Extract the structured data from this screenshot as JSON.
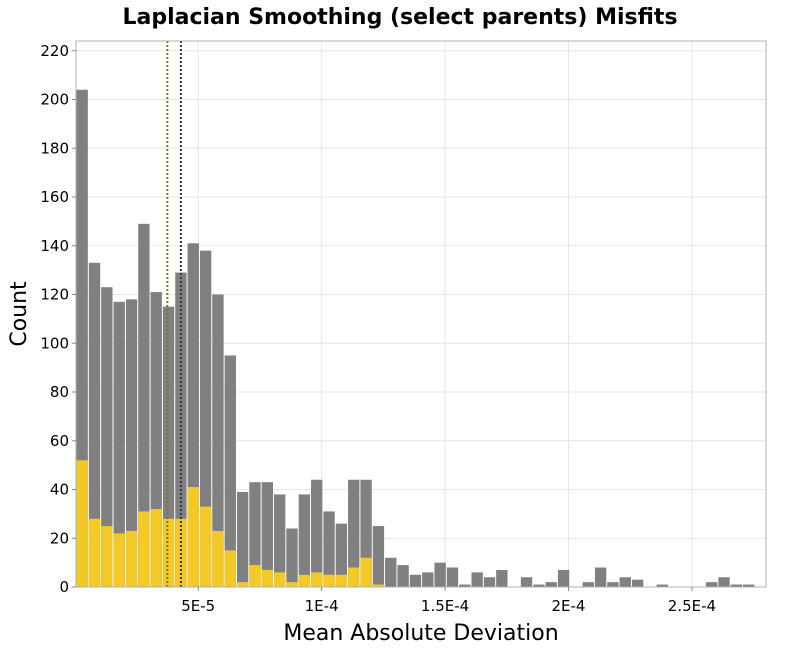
{
  "chart_data": {
    "type": "bar",
    "title": "Laplacian Smoothing (select parents) Misfits",
    "xlabel": "Mean Absolute Deviation",
    "ylabel": "Count",
    "xlim": [
      5e-07,
      0.00028
    ],
    "ylim": [
      0,
      224
    ],
    "bin_width": 5e-06,
    "x_ticks": [
      {
        "value": 5e-05,
        "label": "5E-5"
      },
      {
        "value": 0.0001,
        "label": "1E-4"
      },
      {
        "value": 0.00015,
        "label": "1.5E-4"
      },
      {
        "value": 0.0002,
        "label": "2E-4"
      },
      {
        "value": 0.00025,
        "label": "2.5E-4"
      }
    ],
    "y_ticks": [
      0,
      20,
      40,
      60,
      80,
      100,
      120,
      140,
      160,
      180,
      200,
      220
    ],
    "grid": true,
    "bin_starts": [
      5e-07,
      5.5e-06,
      1.05e-05,
      1.55e-05,
      2.05e-05,
      2.55e-05,
      3.05e-05,
      3.55e-05,
      4.05e-05,
      4.55e-05,
      5.05e-05,
      5.55e-05,
      6.05e-05,
      6.55e-05,
      7.05e-05,
      7.55e-05,
      8.05e-05,
      8.55e-05,
      9.05e-05,
      9.55e-05,
      0.0001005,
      0.0001055,
      0.0001105,
      0.0001155,
      0.0001205,
      0.0001255,
      0.0001305,
      0.0001355,
      0.0001405,
      0.0001455,
      0.0001505,
      0.0001555,
      0.0001605,
      0.0001655,
      0.0001705,
      0.0001755,
      0.0001805,
      0.0001855,
      0.0001905,
      0.0001955,
      0.0002005,
      0.0002055,
      0.0002105,
      0.0002155,
      0.0002205,
      0.0002255,
      0.0002305,
      0.0002355,
      0.0002405,
      0.0002455,
      0.0002505,
      0.0002555,
      0.0002605,
      0.0002655,
      0.0002705,
      0.0002755
    ],
    "series": [
      {
        "color": "#808080",
        "values": [
          204,
          133,
          123,
          117,
          118,
          149,
          121,
          115,
          129,
          141,
          138,
          120,
          95,
          39,
          43,
          43,
          38,
          24,
          38,
          44,
          31,
          26,
          44,
          44,
          25,
          12,
          9,
          5,
          6,
          10,
          8,
          1,
          6,
          4,
          7,
          0,
          4,
          1,
          2,
          7,
          0,
          2,
          8,
          2,
          4,
          3,
          0,
          1,
          0,
          0,
          0,
          2,
          4,
          1,
          1,
          0
        ]
      },
      {
        "color": "#f2c927",
        "values": [
          52,
          28,
          25,
          22,
          23,
          31,
          32,
          28,
          28,
          41,
          33,
          23,
          15,
          2,
          9,
          7,
          6,
          2,
          5,
          6,
          5,
          5,
          8,
          12,
          1,
          0,
          0,
          0,
          0,
          0,
          0,
          0,
          0,
          0,
          0,
          0,
          0,
          0,
          0,
          0,
          0,
          0,
          0,
          0,
          0,
          0,
          0,
          0,
          0,
          0,
          0,
          0,
          0,
          0,
          0,
          0
        ]
      }
    ],
    "reference_lines": [
      {
        "x": 3.75e-05,
        "color": "#7a7a20",
        "style": "dotted"
      },
      {
        "x": 4.3e-05,
        "color": "#333344",
        "style": "dotted"
      }
    ]
  }
}
